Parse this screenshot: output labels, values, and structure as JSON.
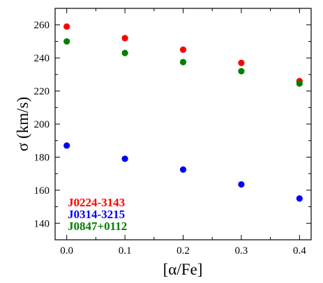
{
  "chart_data": {
    "type": "scatter",
    "xlabel": "[α/Fe]",
    "ylabel": "σ (km/s)",
    "xlim": [
      -0.02,
      0.42
    ],
    "ylim": [
      130,
      270
    ],
    "xticks": [
      0.0,
      0.1,
      0.2,
      0.3,
      0.4
    ],
    "xtick_labels": [
      "0.0",
      "0.1",
      "0.2",
      "0.3",
      "0.4"
    ],
    "yticks": [
      140,
      160,
      180,
      200,
      220,
      240,
      260
    ],
    "ytick_labels": [
      "140",
      "160",
      "180",
      "200",
      "220",
      "240",
      "260"
    ],
    "grid": false,
    "legend_placement": "bottom-left",
    "series": [
      {
        "name": "J0224-3143",
        "color": "#ff0000",
        "x": [
          0.0,
          0.1,
          0.2,
          0.3,
          0.4
        ],
        "y": [
          259,
          252,
          245,
          237,
          226
        ]
      },
      {
        "name": "J0314-3215",
        "color": "#0000ff",
        "x": [
          0.0,
          0.1,
          0.2,
          0.3,
          0.4
        ],
        "y": [
          187,
          179,
          172.5,
          163.5,
          155
        ]
      },
      {
        "name": "J0847+0112",
        "color": "#008000",
        "x": [
          0.0,
          0.1,
          0.2,
          0.3,
          0.4
        ],
        "y": [
          250,
          243,
          237.5,
          232,
          224.5
        ]
      }
    ]
  }
}
